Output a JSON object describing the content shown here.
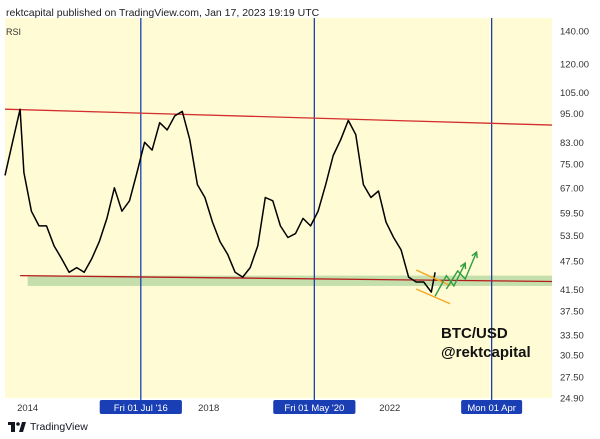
{
  "header": {
    "title": "rektcapital published on TradingView.com, Jan 17, 2023 19:19 UTC",
    "indicator": "RSI"
  },
  "footer": {
    "brand": "TradingView"
  },
  "watermark": {
    "line1": "BTC/USD",
    "line2": "@rektcapital"
  },
  "colors": {
    "plot_background": "#fffbd4",
    "rsi_line": "#000000",
    "resistance_line": "#d32f2f",
    "support_zone": "#b5d8a0",
    "support_line": "#b71c1c",
    "vertical_markers": "#1a3fb5",
    "wedge_lines": "#f5a623",
    "projection": "#2e9e3e"
  },
  "chart_data": {
    "type": "line",
    "title": "",
    "ylabel": "RSI",
    "ylim": [
      24.9,
      149
    ],
    "y_scale": "log",
    "y_ticks": [
      "140.00",
      "120.00",
      "105.00",
      "95.00",
      "83.00",
      "75.00",
      "67.00",
      "59.50",
      "53.50",
      "47.50",
      "41.50",
      "37.50",
      "33.50",
      "30.50",
      "27.50",
      "24.90"
    ],
    "x_range": [
      "2013-07",
      "2025-08"
    ],
    "x_ticks": [
      {
        "label": "2014",
        "x": "2014-01"
      },
      {
        "label": "2018",
        "x": "2018-01"
      },
      {
        "label": "2022",
        "x": "2022-01"
      }
    ],
    "x_badges": [
      {
        "label": "Fri 01 Jul '16",
        "x": "2016-07-01"
      },
      {
        "label": "Fri 01 May '20",
        "x": "2020-05-01"
      },
      {
        "label": "Mon 01 Apr",
        "x": "2024-04-01"
      }
    ],
    "vertical_lines": [
      "2016-07-01",
      "2020-05-01",
      "2024-04-01"
    ],
    "series": [
      {
        "x": [
          "2013-07",
          "2013-09",
          "2013-11",
          "2013-12",
          "2014-02",
          "2014-04",
          "2014-06",
          "2014-08",
          "2014-10",
          "2014-12",
          "2015-02",
          "2015-04",
          "2015-06",
          "2015-08",
          "2015-10",
          "2015-12",
          "2016-02",
          "2016-04",
          "2016-06",
          "2016-08",
          "2016-10",
          "2016-12",
          "2017-02",
          "2017-04",
          "2017-06",
          "2017-08",
          "2017-10",
          "2017-12",
          "2018-02",
          "2018-04",
          "2018-06",
          "2018-08",
          "2018-10",
          "2018-12",
          "2019-02",
          "2019-04",
          "2019-06",
          "2019-08",
          "2019-10",
          "2019-12",
          "2020-02",
          "2020-04",
          "2020-06",
          "2020-08",
          "2020-10",
          "2020-12",
          "2021-02",
          "2021-04",
          "2021-06",
          "2021-08",
          "2021-10",
          "2021-12",
          "2022-02",
          "2022-04",
          "2022-06",
          "2022-08",
          "2022-10",
          "2022-12",
          "2023-01"
        ],
        "values": [
          71,
          83,
          97,
          72,
          60,
          56,
          56,
          51,
          48,
          45,
          46,
          45,
          48,
          52,
          58,
          67,
          60,
          63,
          72,
          83,
          80,
          91,
          88,
          94,
          96,
          84,
          68,
          64,
          57,
          52,
          49,
          45,
          44,
          46,
          51,
          64,
          63,
          56,
          53,
          54,
          58,
          56,
          60,
          68,
          78,
          84,
          92,
          86,
          68,
          64,
          66,
          57,
          53,
          50,
          44,
          43,
          43,
          41,
          45
        ]
      }
    ],
    "annotations": [
      {
        "type": "resistance_line",
        "from": {
          "x": "2013-07",
          "y": 97
        },
        "to": {
          "x": "2025-08",
          "y": 90
        }
      },
      {
        "type": "support_zone",
        "from_x": "2014-01",
        "to_x": "2025-08",
        "y_range": [
          42.2,
          44.3
        ]
      },
      {
        "type": "support_line",
        "from": {
          "x": "2013-11",
          "y": 44.3
        },
        "to": {
          "x": "2025-08",
          "y": 43.1
        }
      },
      {
        "type": "wedge_upper",
        "from": {
          "x": "2022-08",
          "y": 45.5
        },
        "to": {
          "x": "2023-05",
          "y": 42.3
        }
      },
      {
        "type": "wedge_lower",
        "from": {
          "x": "2022-08",
          "y": 41.6
        },
        "to": {
          "x": "2023-05",
          "y": 38.8
        }
      },
      {
        "type": "projection_arrow_1",
        "points": [
          {
            "x": "2023-01",
            "y": 40.2
          },
          {
            "x": "2023-04",
            "y": 44.3
          },
          {
            "x": "2023-06",
            "y": 42.2
          },
          {
            "x": "2023-09",
            "y": 47.0
          }
        ]
      },
      {
        "type": "projection_arrow_2",
        "points": [
          {
            "x": "2023-04",
            "y": 41.6
          },
          {
            "x": "2023-07",
            "y": 45.3
          },
          {
            "x": "2023-09",
            "y": 43.6
          },
          {
            "x": "2023-12",
            "y": 49.5
          }
        ]
      }
    ]
  }
}
